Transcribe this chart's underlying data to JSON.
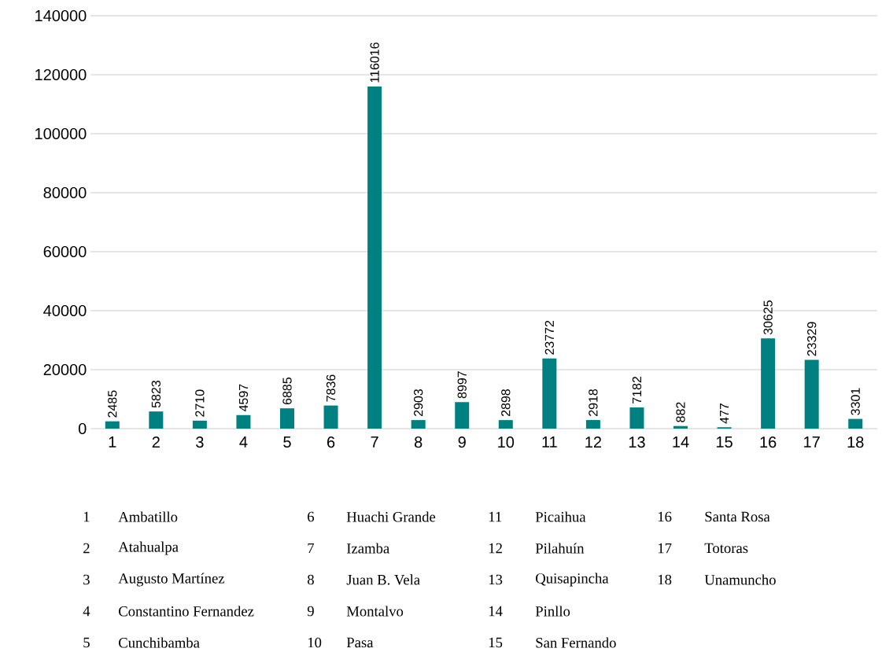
{
  "chart_data": {
    "type": "bar",
    "categories": [
      "1",
      "2",
      "3",
      "4",
      "5",
      "6",
      "7",
      "8",
      "9",
      "10",
      "11",
      "12",
      "13",
      "14",
      "15",
      "16",
      "17",
      "18"
    ],
    "values": [
      2485,
      5823,
      2710,
      4597,
      6885,
      7836,
      116016,
      2903,
      8997,
      2898,
      23772,
      2918,
      7182,
      882,
      477,
      30625,
      23329,
      3301
    ],
    "color": "#008080",
    "ylim": [
      0,
      140000
    ],
    "yticks": [
      0,
      20000,
      40000,
      60000,
      80000,
      100000,
      120000,
      140000
    ],
    "grid": "y",
    "data_labels": true,
    "annotations": [
      "Ambatillo",
      "Atahualpa",
      "Augusto Martínez",
      "Constantino Fernandez",
      "Cunchibamba",
      "Huachi Grande",
      "Izamba",
      "Juan B. Vela",
      "Montalvo",
      "Pasa",
      "Picaihua",
      "Pilahuín",
      "Quisapincha",
      "Pinllo",
      "San Fernando",
      "Santa Rosa",
      "Totoras",
      "Unamuncho"
    ]
  }
}
